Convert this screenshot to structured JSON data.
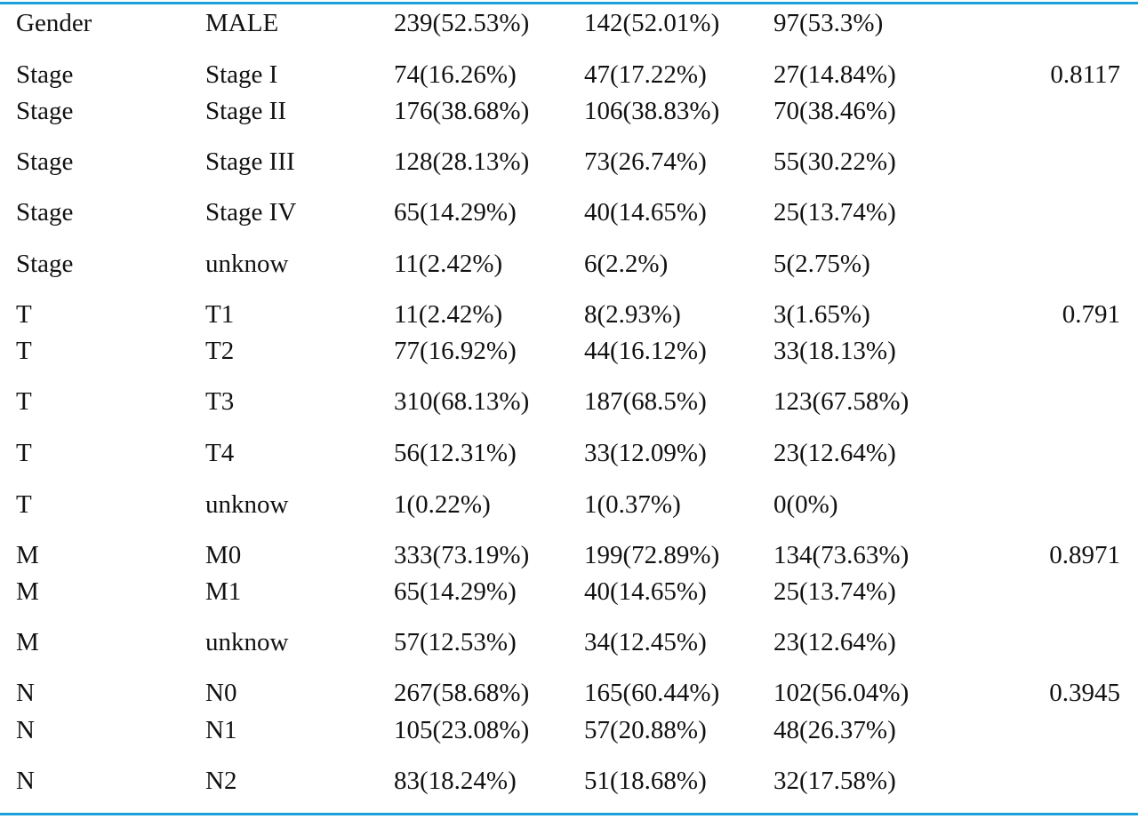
{
  "rows": [
    {
      "variable": "Gender",
      "level": "MALE",
      "total": "239(52.53%)",
      "group1": "142(52.01%)",
      "group2": "97(53.3%)",
      "pvalue": ""
    },
    {
      "variable": "Stage",
      "level": "Stage I",
      "total": "74(16.26%)",
      "group1": "47(17.22%)",
      "group2": "27(14.84%)",
      "pvalue": "0.8117"
    },
    {
      "variable": "Stage",
      "level": "Stage II",
      "total": "176(38.68%)",
      "group1": "106(38.83%)",
      "group2": "70(38.46%)",
      "pvalue": ""
    },
    {
      "variable": "Stage",
      "level": "Stage III",
      "total": "128(28.13%)",
      "group1": "73(26.74%)",
      "group2": "55(30.22%)",
      "pvalue": ""
    },
    {
      "variable": "Stage",
      "level": "Stage IV",
      "total": "65(14.29%)",
      "group1": "40(14.65%)",
      "group2": "25(13.74%)",
      "pvalue": ""
    },
    {
      "variable": "Stage",
      "level": "unknow",
      "total": "11(2.42%)",
      "group1": "6(2.2%)",
      "group2": "5(2.75%)",
      "pvalue": ""
    },
    {
      "variable": "T",
      "level": "T1",
      "total": "11(2.42%)",
      "group1": "8(2.93%)",
      "group2": "3(1.65%)",
      "pvalue": "0.791"
    },
    {
      "variable": "T",
      "level": "T2",
      "total": "77(16.92%)",
      "group1": "44(16.12%)",
      "group2": "33(18.13%)",
      "pvalue": ""
    },
    {
      "variable": "T",
      "level": "T3",
      "total": "310(68.13%)",
      "group1": "187(68.5%)",
      "group2": "123(67.58%)",
      "pvalue": ""
    },
    {
      "variable": "T",
      "level": "T4",
      "total": "56(12.31%)",
      "group1": "33(12.09%)",
      "group2": "23(12.64%)",
      "pvalue": ""
    },
    {
      "variable": "T",
      "level": "unknow",
      "total": "1(0.22%)",
      "group1": "1(0.37%)",
      "group2": "0(0%)",
      "pvalue": ""
    },
    {
      "variable": "M",
      "level": "M0",
      "total": "333(73.19%)",
      "group1": "199(72.89%)",
      "group2": "134(73.63%)",
      "pvalue": "0.8971"
    },
    {
      "variable": "M",
      "level": "M1",
      "total": "65(14.29%)",
      "group1": "40(14.65%)",
      "group2": "25(13.74%)",
      "pvalue": ""
    },
    {
      "variable": "M",
      "level": "unknow",
      "total": "57(12.53%)",
      "group1": "34(12.45%)",
      "group2": "23(12.64%)",
      "pvalue": ""
    },
    {
      "variable": "N",
      "level": "N0",
      "total": "267(58.68%)",
      "group1": "165(60.44%)",
      "group2": "102(56.04%)",
      "pvalue": "0.3945"
    },
    {
      "variable": "N",
      "level": "N1",
      "total": "105(23.08%)",
      "group1": "57(20.88%)",
      "group2": "48(26.37%)",
      "pvalue": ""
    },
    {
      "variable": "N",
      "level": "N2",
      "total": "83(18.24%)",
      "group1": "51(18.68%)",
      "group2": "32(17.58%)",
      "pvalue": ""
    }
  ]
}
